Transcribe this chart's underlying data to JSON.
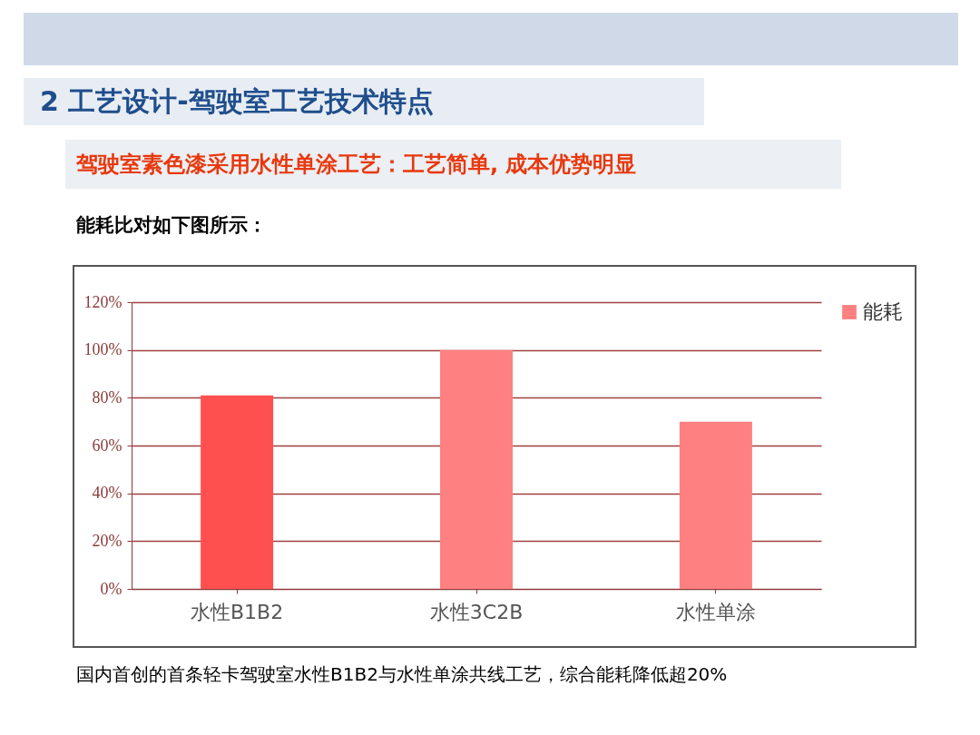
{
  "chart_data": {
    "type": "bar",
    "title": "2 工艺设计-驾驶室工艺技术特点",
    "subtitle": "驾驶室素色漆采用水性单涂工艺：工艺简单, 成本优势明显",
    "annotations": [
      "能耗比对如下图所示：",
      "国内首创的首条轻卡驾驶室水性B1B2与水性单涂共线工艺，综合能耗降低超20%"
    ],
    "categories": [
      "水性B1B2",
      "水性3C2B",
      "水性单涂"
    ],
    "series": [
      {
        "name": "能耗",
        "color": "#ff8080",
        "colors": [
          "#ff5050",
          "#ff8080",
          "#ff8080"
        ],
        "values": [
          81,
          100,
          70
        ]
      }
    ],
    "ylim": [
      0,
      120
    ],
    "yticks": [
      {
        "value": 0,
        "label": "0%"
      },
      {
        "value": 20,
        "label": "20%"
      },
      {
        "value": 40,
        "label": "40%"
      },
      {
        "value": 60,
        "label": "60%"
      },
      {
        "value": 80,
        "label": "80%"
      },
      {
        "value": 100,
        "label": "100%"
      },
      {
        "value": 120,
        "label": "120%"
      }
    ],
    "grid": "y",
    "legend": "right"
  }
}
